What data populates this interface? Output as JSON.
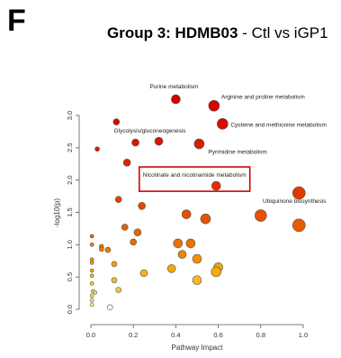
{
  "figure": {
    "panel_letter": "F",
    "title_bold": "Group 3: HDMB03",
    "title_rest": " - Ctl vs iGP1"
  },
  "chart_data": {
    "type": "scatter",
    "title": "",
    "xlabel": "Pathway Impact",
    "ylabel": "-log10(p)",
    "xlim": [
      0,
      1
    ],
    "ylim": [
      0,
      3.2
    ],
    "xticks": [
      "0.0",
      "0.2",
      "0.4",
      "0.6",
      "0.8",
      "1.0"
    ],
    "yticks": [
      "0.0",
      "0.5",
      "1.0",
      "1.5",
      "2.0",
      "2.5",
      "3.0"
    ],
    "grid": false,
    "color_scale": {
      "low": "#ffffa0",
      "mid": "#f4a000",
      "high": "#d40000"
    },
    "highlight_color": "#d40000",
    "points": [
      {
        "x": 0.4,
        "y": 3.25,
        "r": 5,
        "p": 1.0,
        "label": "Purine metabolism"
      },
      {
        "x": 0.58,
        "y": 3.15,
        "r": 6,
        "p": 0.98,
        "label": "Arginine and proline metabolism"
      },
      {
        "x": 0.62,
        "y": 2.87,
        "r": 6,
        "p": 0.96,
        "label": "Cysteine and methionine metabolism"
      },
      {
        "x": 0.12,
        "y": 2.9,
        "r": 3.5,
        "p": 0.97
      },
      {
        "x": 0.21,
        "y": 2.58,
        "r": 4,
        "p": 0.93,
        "label": "Glycolysis/gluconeogenesis"
      },
      {
        "x": 0.32,
        "y": 2.6,
        "r": 4.5,
        "p": 0.93
      },
      {
        "x": 0.51,
        "y": 2.56,
        "r": 5.5,
        "p": 0.92,
        "label": "Pyrimidine metabolism"
      },
      {
        "x": 0.03,
        "y": 2.48,
        "r": 2.5,
        "p": 0.91
      },
      {
        "x": 0.17,
        "y": 2.27,
        "r": 4,
        "p": 0.88
      },
      {
        "x": 0.59,
        "y": 1.91,
        "r": 5,
        "p": 0.85,
        "label": "Nicotinate and nicotinamide metabolism",
        "highlight": true
      },
      {
        "x": 0.98,
        "y": 1.8,
        "r": 7,
        "p": 0.82,
        "label": "Ubiquinone biosynthesis"
      },
      {
        "x": 0.13,
        "y": 1.7,
        "r": 3.5,
        "p": 0.8
      },
      {
        "x": 0.24,
        "y": 1.6,
        "r": 4,
        "p": 0.78
      },
      {
        "x": 0.45,
        "y": 1.47,
        "r": 5,
        "p": 0.75
      },
      {
        "x": 0.54,
        "y": 1.4,
        "r": 5.5,
        "p": 0.74
      },
      {
        "x": 0.8,
        "y": 1.45,
        "r": 6.5,
        "p": 0.74
      },
      {
        "x": 0.98,
        "y": 1.3,
        "r": 7,
        "p": 0.72
      },
      {
        "x": 0.16,
        "y": 1.27,
        "r": 3.5,
        "p": 0.7
      },
      {
        "x": 0.22,
        "y": 1.19,
        "r": 4,
        "p": 0.68
      },
      {
        "x": 0.2,
        "y": 1.04,
        "r": 3.5,
        "p": 0.66
      },
      {
        "x": 0.41,
        "y": 1.02,
        "r": 5,
        "p": 0.64
      },
      {
        "x": 0.47,
        "y": 1.02,
        "r": 5,
        "p": 0.64
      },
      {
        "x": 0.43,
        "y": 0.85,
        "r": 4.5,
        "p": 0.58
      },
      {
        "x": 0.5,
        "y": 0.78,
        "r": 5,
        "p": 0.55
      },
      {
        "x": 0.6,
        "y": 0.65,
        "r": 5,
        "p": 0.48
      },
      {
        "x": 0.59,
        "y": 0.58,
        "r": 5.5,
        "p": 0.45
      },
      {
        "x": 0.38,
        "y": 0.63,
        "r": 4.5,
        "p": 0.47
      },
      {
        "x": 0.25,
        "y": 0.56,
        "r": 4,
        "p": 0.42
      },
      {
        "x": 0.5,
        "y": 0.45,
        "r": 5,
        "p": 0.38
      },
      {
        "x": 0.11,
        "y": 0.45,
        "r": 3,
        "p": 0.36
      },
      {
        "x": 0.13,
        "y": 0.3,
        "r": 3,
        "p": 0.3
      },
      {
        "x": 0.11,
        "y": 0.7,
        "r": 3,
        "p": 0.5
      },
      {
        "x": 0.05,
        "y": 0.97,
        "r": 2.5,
        "p": 0.64
      },
      {
        "x": 0.05,
        "y": 0.93,
        "r": 2.5,
        "p": 0.62
      },
      {
        "x": 0.08,
        "y": 0.92,
        "r": 3,
        "p": 0.62
      },
      {
        "x": 0.005,
        "y": 1.13,
        "r": 2,
        "p": 0.69
      },
      {
        "x": 0.005,
        "y": 1.0,
        "r": 2,
        "p": 0.63
      },
      {
        "x": 0.005,
        "y": 0.77,
        "r": 2,
        "p": 0.54
      },
      {
        "x": 0.005,
        "y": 0.72,
        "r": 2,
        "p": 0.52
      },
      {
        "x": 0.005,
        "y": 0.6,
        "r": 2,
        "p": 0.45
      },
      {
        "x": 0.005,
        "y": 0.52,
        "r": 2,
        "p": 0.4
      },
      {
        "x": 0.005,
        "y": 0.4,
        "r": 2,
        "p": 0.33
      },
      {
        "x": 0.01,
        "y": 0.28,
        "r": 2,
        "p": 0.25
      },
      {
        "x": 0.02,
        "y": 0.26,
        "r": 2,
        "p": 0.23
      },
      {
        "x": 0.005,
        "y": 0.21,
        "r": 2,
        "p": 0.2
      },
      {
        "x": 0.005,
        "y": 0.14,
        "r": 2,
        "p": 0.15
      },
      {
        "x": 0.005,
        "y": 0.07,
        "r": 2,
        "p": 0.1
      },
      {
        "x": 0.09,
        "y": 0.03,
        "r": 3,
        "p": 0.0
      }
    ]
  }
}
